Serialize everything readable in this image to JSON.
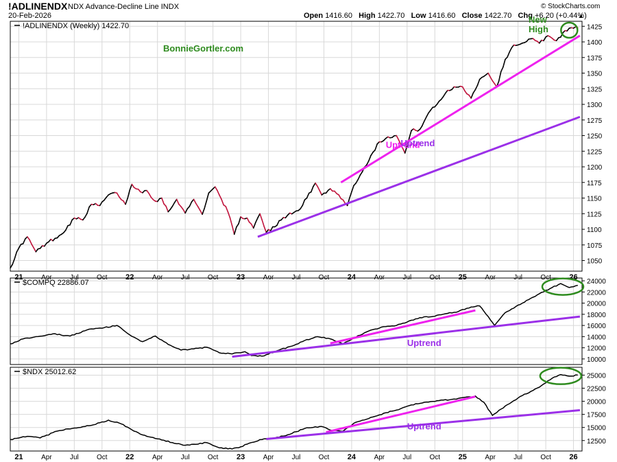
{
  "header": {
    "symbol": "!ADLINENDX",
    "description": "NDX Advance-Decline Line",
    "exchange": "INDX",
    "date": "20-Feb-2026",
    "open_label": "Open",
    "open": "1416.60",
    "high_label": "High",
    "high": "1422.70",
    "low_label": "Low",
    "low": "1416.60",
    "close_label": "Close",
    "close": "1422.70",
    "chg_label": "Chg",
    "chg": "+6.20 (+0.44%)",
    "source": "© StockCharts.com"
  },
  "colors": {
    "price": "#000000",
    "down": "#c0143c",
    "short_trend": "#ee22ee",
    "long_trend": "#9b30e8",
    "highlight": "#2e8b1e",
    "grid": "#d8d8d8"
  },
  "chart_data": [
    {
      "type": "line",
      "panel": "main",
      "legend": "!ADLINENDX (Weekly) 1422.70",
      "watermark": "BonnieGortler.com",
      "x_tick_labels": [
        "21",
        "Apr",
        "Jul",
        "Oct",
        "22",
        "Apr",
        "Jul",
        "Oct",
        "23",
        "Apr",
        "Jul",
        "Oct",
        "24",
        "Apr",
        "Jul",
        "Oct",
        "25",
        "Apr",
        "Jul",
        "Oct",
        "26"
      ],
      "y_ticks": [
        1050,
        1075,
        1100,
        1125,
        1150,
        1175,
        1200,
        1225,
        1250,
        1275,
        1300,
        1325,
        1350,
        1375,
        1400,
        1425
      ],
      "ylim": [
        1033,
        1433
      ],
      "series": [
        {
          "anchors": [
            [
              0,
              1038
            ],
            [
              4,
              1070
            ],
            [
              8,
              1088
            ],
            [
              12,
              1064
            ],
            [
              18,
              1080
            ],
            [
              24,
              1092
            ],
            [
              30,
              1118
            ],
            [
              34,
              1115
            ],
            [
              38,
              1140
            ],
            [
              42,
              1138
            ],
            [
              46,
              1155
            ],
            [
              50,
              1158
            ],
            [
              54,
              1140
            ],
            [
              57,
              1172
            ],
            [
              61,
              1160
            ],
            [
              64,
              1162
            ],
            [
              68,
              1145
            ],
            [
              71,
              1150
            ],
            [
              74,
              1128
            ],
            [
              78,
              1148
            ],
            [
              82,
              1126
            ],
            [
              86,
              1148
            ],
            [
              90,
              1124
            ],
            [
              93,
              1158
            ],
            [
              96,
              1168
            ],
            [
              99,
              1148
            ],
            [
              102,
              1128
            ],
            [
              105,
              1092
            ],
            [
              108,
              1120
            ],
            [
              111,
              1118
            ],
            [
              114,
              1102
            ],
            [
              117,
              1125
            ],
            [
              120,
              1095
            ],
            [
              124,
              1104
            ],
            [
              127,
              1115
            ],
            [
              131,
              1126
            ],
            [
              135,
              1130
            ],
            [
              139,
              1150
            ],
            [
              143,
              1174
            ],
            [
              146,
              1155
            ],
            [
              150,
              1165
            ],
            [
              154,
              1155
            ],
            [
              158,
              1138
            ],
            [
              161,
              1170
            ],
            [
              165,
              1192
            ],
            [
              169,
              1218
            ],
            [
              173,
              1240
            ],
            [
              177,
              1248
            ],
            [
              181,
              1250
            ],
            [
              185,
              1222
            ],
            [
              188,
              1258
            ],
            [
              192,
              1260
            ],
            [
              196,
              1286
            ],
            [
              200,
              1300
            ],
            [
              204,
              1318
            ],
            [
              208,
              1328
            ],
            [
              212,
              1328
            ],
            [
              216,
              1310
            ],
            [
              220,
              1340
            ],
            [
              224,
              1350
            ],
            [
              228,
              1328
            ],
            [
              232,
              1372
            ],
            [
              236,
              1395
            ],
            [
              240,
              1398
            ],
            [
              244,
              1405
            ],
            [
              248,
              1398
            ],
            [
              252,
              1410
            ],
            [
              256,
              1402
            ],
            [
              260,
              1418
            ],
            [
              264,
              1422
            ],
            [
              266,
              1422.7
            ]
          ],
          "highlight_point": [
            262,
            1422
          ],
          "highlight_label": [
            "New",
            "High"
          ]
        }
      ],
      "trendlines": [
        {
          "label": "Uptrend",
          "color_key": "short_trend",
          "from": [
            155,
            1175
          ],
          "to": [
            267,
            1410
          ]
        },
        {
          "label": "",
          "color_key": "long_trend",
          "from": [
            116,
            1088
          ],
          "to": [
            267,
            1280
          ]
        },
        {
          "label": "Uptrend",
          "color_key": "long_trend",
          "at": [
            183,
            1233
          ]
        }
      ]
    },
    {
      "type": "line",
      "panel": "middle",
      "legend": "$COMPQ 22886.07",
      "y_ticks": [
        10000,
        12000,
        14000,
        16000,
        18000,
        20000,
        22000,
        24000
      ],
      "ylim": [
        9000,
        24500
      ],
      "series": [
        {
          "anchors": [
            [
              0,
              12700
            ],
            [
              6,
              13600
            ],
            [
              12,
              14000
            ],
            [
              20,
              14500
            ],
            [
              28,
              14100
            ],
            [
              36,
              15200
            ],
            [
              44,
              15600
            ],
            [
              50,
              16000
            ],
            [
              56,
              14300
            ],
            [
              62,
              13100
            ],
            [
              68,
              14100
            ],
            [
              74,
              12600
            ],
            [
              80,
              11600
            ],
            [
              86,
              11800
            ],
            [
              92,
              12100
            ],
            [
              98,
              11100
            ],
            [
              104,
              10900
            ],
            [
              110,
              11300
            ],
            [
              113,
              10600
            ],
            [
              118,
              10500
            ],
            [
              126,
              11600
            ],
            [
              132,
              12300
            ],
            [
              138,
              13300
            ],
            [
              144,
              14000
            ],
            [
              150,
              13600
            ],
            [
              156,
              12700
            ],
            [
              162,
              13900
            ],
            [
              168,
              15000
            ],
            [
              174,
              15700
            ],
            [
              180,
              15900
            ],
            [
              186,
              16600
            ],
            [
              192,
              17400
            ],
            [
              198,
              17600
            ],
            [
              204,
              18100
            ],
            [
              210,
              18500
            ],
            [
              216,
              19300
            ],
            [
              220,
              19500
            ],
            [
              224,
              17600
            ],
            [
              227,
              16000
            ],
            [
              232,
              18300
            ],
            [
              240,
              20000
            ],
            [
              248,
              21700
            ],
            [
              254,
              22800
            ],
            [
              258,
              23500
            ],
            [
              262,
              22800
            ],
            [
              266,
              23200
            ]
          ],
          "highlight_point": [
            259,
            23200
          ]
        }
      ],
      "trendlines": [
        {
          "label": "",
          "color_key": "short_trend",
          "from": [
            150,
            12800
          ],
          "to": [
            218,
            18700
          ]
        },
        {
          "label": "",
          "color_key": "long_trend",
          "from": [
            104,
            10400
          ],
          "to": [
            267,
            17600
          ]
        },
        {
          "label": "Uptrend",
          "color_key": "long_trend",
          "at": [
            186,
            12300
          ]
        }
      ]
    },
    {
      "type": "line",
      "panel": "bottom",
      "legend": "$NDX 25012.62",
      "x_tick_labels": [
        "21",
        "Apr",
        "Jul",
        "Oct",
        "22",
        "Apr",
        "Jul",
        "Oct",
        "23",
        "Apr",
        "Jul",
        "Oct",
        "24",
        "Apr",
        "Jul",
        "Oct",
        "25",
        "Apr",
        "Jul",
        "Oct",
        "26"
      ],
      "y_ticks": [
        12500,
        15000,
        17500,
        20000,
        22500,
        25000
      ],
      "ylim": [
        10500,
        26500
      ],
      "series": [
        {
          "anchors": [
            [
              0,
              12700
            ],
            [
              8,
              13300
            ],
            [
              14,
              13000
            ],
            [
              22,
              14300
            ],
            [
              30,
              14900
            ],
            [
              38,
              15400
            ],
            [
              46,
              16400
            ],
            [
              52,
              15700
            ],
            [
              58,
              14300
            ],
            [
              64,
              13300
            ],
            [
              70,
              12800
            ],
            [
              76,
              12100
            ],
            [
              82,
              11600
            ],
            [
              86,
              11800
            ],
            [
              92,
              12100
            ],
            [
              98,
              11100
            ],
            [
              104,
              10900
            ],
            [
              108,
              11300
            ],
            [
              112,
              12000
            ],
            [
              118,
              12700
            ],
            [
              124,
              13000
            ],
            [
              130,
              13600
            ],
            [
              138,
              14800
            ],
            [
              146,
              15200
            ],
            [
              150,
              14500
            ],
            [
              156,
              14300
            ],
            [
              162,
              16000
            ],
            [
              170,
              17000
            ],
            [
              176,
              17800
            ],
            [
              182,
              18400
            ],
            [
              188,
              19300
            ],
            [
              194,
              19800
            ],
            [
              200,
              20100
            ],
            [
              206,
              20300
            ],
            [
              212,
              20700
            ],
            [
              218,
              21000
            ],
            [
              222,
              19800
            ],
            [
              226,
              17300
            ],
            [
              232,
              19100
            ],
            [
              240,
              21100
            ],
            [
              248,
              22700
            ],
            [
              254,
              24400
            ],
            [
              258,
              25100
            ],
            [
              262,
              24800
            ],
            [
              266,
              25000
            ]
          ],
          "highlight_point": [
            258,
            25100
          ]
        }
      ],
      "trendlines": [
        {
          "label": "",
          "color_key": "short_trend",
          "from": [
            148,
            14100
          ],
          "to": [
            218,
            20900
          ]
        },
        {
          "label": "",
          "color_key": "long_trend",
          "from": [
            120,
            12800
          ],
          "to": [
            267,
            18300
          ]
        },
        {
          "label": "Uptrend",
          "color_key": "long_trend",
          "at": [
            186,
            14600
          ]
        }
      ]
    }
  ]
}
